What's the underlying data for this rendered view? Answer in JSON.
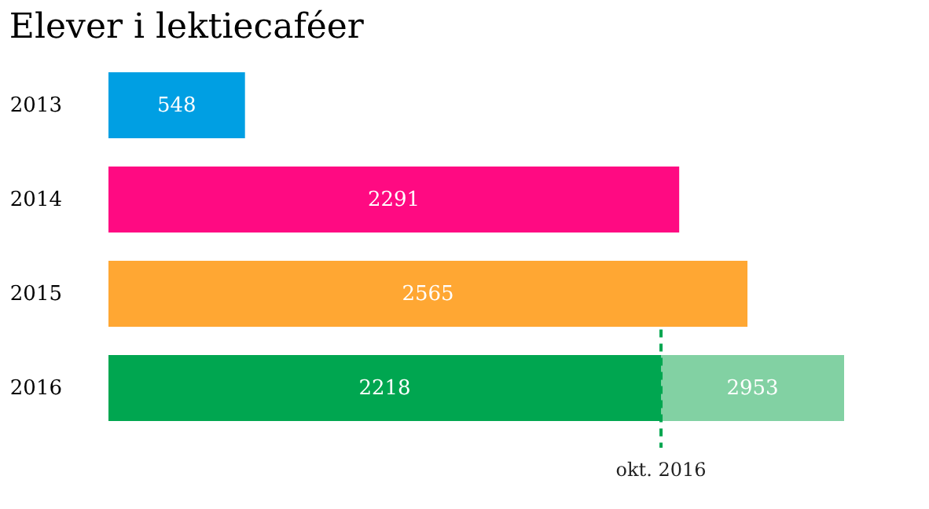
{
  "chart_data": {
    "type": "bar",
    "orientation": "horizontal",
    "title": "Elever i lektiecaféer",
    "categories": [
      "2013",
      "2014",
      "2015",
      "2016"
    ],
    "series": [
      {
        "values": [
          548,
          2291,
          2565,
          2218
        ],
        "colors": [
          "#009fe3",
          "#ff0a82",
          "#ffa733",
          "#00a650"
        ]
      },
      {
        "values": [
          null,
          null,
          null,
          2953
        ],
        "color": "#82d1a3"
      }
    ],
    "data_labels": true,
    "tick_labels": "y",
    "grid": false,
    "legend": false,
    "ref_lines": [
      {
        "axis": "x",
        "value": 2218,
        "label": "okt. 2016",
        "color": "#00a650",
        "line_style": "dashed"
      }
    ]
  }
}
